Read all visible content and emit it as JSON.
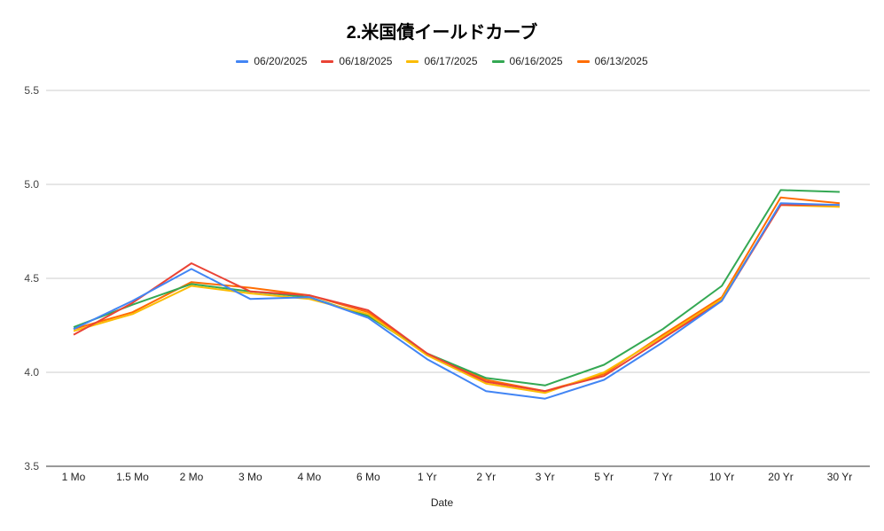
{
  "chart_data": {
    "type": "line",
    "title": "2.米国債イールドカーブ",
    "xlabel": "Date",
    "ylabel": "",
    "ylim": [
      3.5,
      5.5
    ],
    "yticks": [
      "3.5",
      "4.0",
      "4.5",
      "5.0",
      "5.5"
    ],
    "grid": true,
    "legend_position": "top",
    "categories": [
      "1 Mo",
      "1.5 Mo",
      "2 Mo",
      "3 Mo",
      "4 Mo",
      "6 Mo",
      "1 Yr",
      "2 Yr",
      "3 Yr",
      "5 Yr",
      "7 Yr",
      "10 Yr",
      "20 Yr",
      "30 Yr"
    ],
    "series": [
      {
        "name": "06/20/2025",
        "color": "#4285f4",
        "values": [
          4.23,
          4.38,
          4.55,
          4.39,
          4.4,
          4.29,
          4.07,
          3.9,
          3.86,
          3.96,
          4.16,
          4.38,
          4.9,
          4.89
        ]
      },
      {
        "name": "06/18/2025",
        "color": "#ea4335",
        "values": [
          4.2,
          4.37,
          4.58,
          4.43,
          4.41,
          4.33,
          4.1,
          3.95,
          3.9,
          3.98,
          4.18,
          4.38,
          4.89,
          4.89
        ]
      },
      {
        "name": "06/17/2025",
        "color": "#fbbc04",
        "values": [
          4.22,
          4.31,
          4.46,
          4.42,
          4.39,
          4.31,
          4.09,
          3.94,
          3.89,
          4.0,
          4.19,
          4.39,
          4.89,
          4.88
        ]
      },
      {
        "name": "06/16/2025",
        "color": "#34a853",
        "values": [
          4.24,
          4.36,
          4.47,
          4.43,
          4.4,
          4.3,
          4.1,
          3.97,
          3.93,
          4.04,
          4.23,
          4.46,
          4.97,
          4.96
        ]
      },
      {
        "name": "06/13/2025",
        "color": "#ff6d01",
        "values": [
          4.23,
          4.32,
          4.48,
          4.45,
          4.41,
          4.32,
          4.1,
          3.96,
          3.9,
          3.99,
          4.2,
          4.4,
          4.93,
          4.9
        ]
      }
    ]
  }
}
